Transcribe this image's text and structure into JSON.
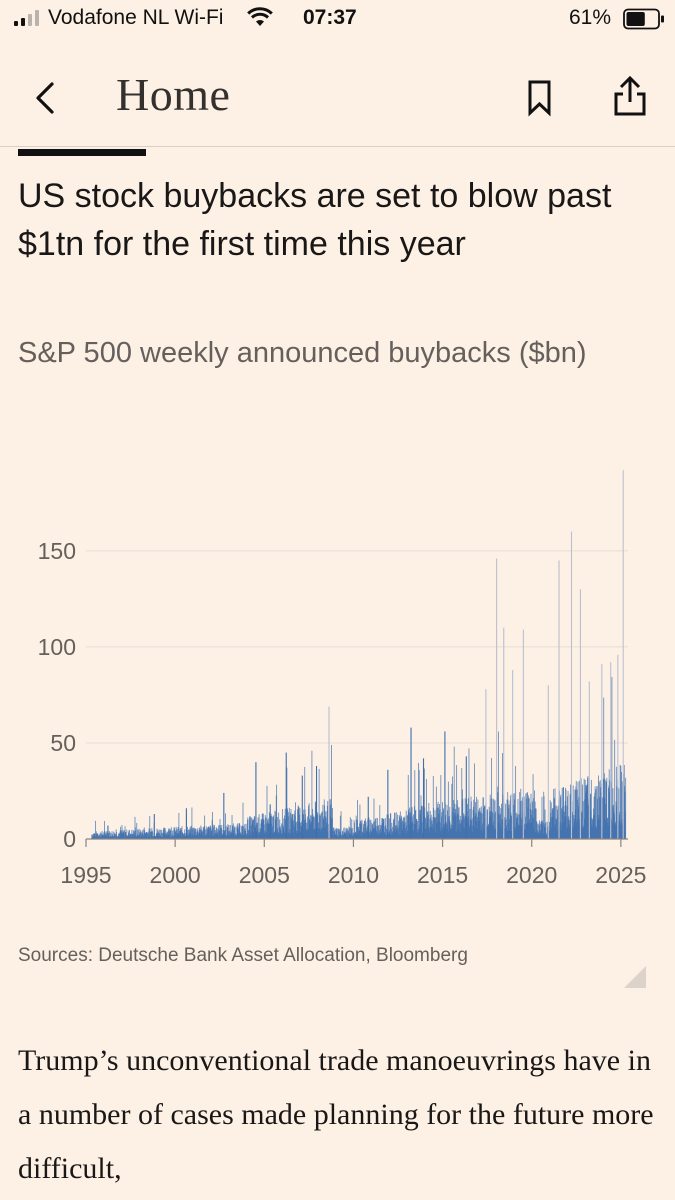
{
  "status_bar": {
    "carrier": "Vodafone NL Wi-Fi",
    "time": "07:37",
    "battery": "61%",
    "battery_level": 0.61,
    "signal_bars": 2
  },
  "nav": {
    "title": "Home",
    "back_icon": "chevron-left-icon",
    "bookmark_icon": "bookmark-icon",
    "share_icon": "share-icon"
  },
  "article": {
    "headline": "US stock buybacks are set to blow past $1tn for the first time this year",
    "chart_subtitle": "S&P 500 weekly announced buybacks ($bn)",
    "source": "Sources: Deutsche Bank Asset Allocation, Bloomberg",
    "body_start": "Trump’s unconventional trade manoeuvrings have in a number of cases made planning for the future more difficult,"
  },
  "colors": {
    "background": "#fdf1e6",
    "bar": "#3d6fad",
    "gridline": "#e6ddd5",
    "axis_text": "#66605c"
  },
  "chart_data": {
    "type": "bar",
    "title": "",
    "xlabel": "",
    "ylabel": "",
    "xlim": [
      1995,
      2025.4
    ],
    "ylim": [
      0,
      190
    ],
    "yticks": [
      0,
      50,
      100,
      150
    ],
    "xticks": [
      1995,
      2000,
      2005,
      2010,
      2015,
      2020,
      2025
    ],
    "grid": true,
    "series": [
      {
        "values_note": "weekly bars; notable peaks listed",
        "x": [
          1996.2,
          1998.8,
          2000.6,
          2002.7,
          2004.5,
          2005.3,
          2006.2,
          2007.1,
          2007.9,
          2008.6,
          2010.8,
          2011.9,
          2013.2,
          2013.9,
          2015.1,
          2016.3,
          2017.4,
          2018.0,
          2018.4,
          2018.9,
          2019.5,
          2020.9,
          2021.5,
          2022.2,
          2022.7,
          2023.2,
          2023.9,
          2024.4,
          2024.8,
          2025.1
        ],
        "values": [
          7,
          13,
          16,
          24,
          40,
          18,
          45,
          33,
          38,
          69,
          22,
          36,
          58,
          42,
          56,
          43,
          78,
          146,
          110,
          88,
          109,
          80,
          145,
          160,
          130,
          82,
          91,
          92,
          96,
          192
        ]
      }
    ]
  }
}
